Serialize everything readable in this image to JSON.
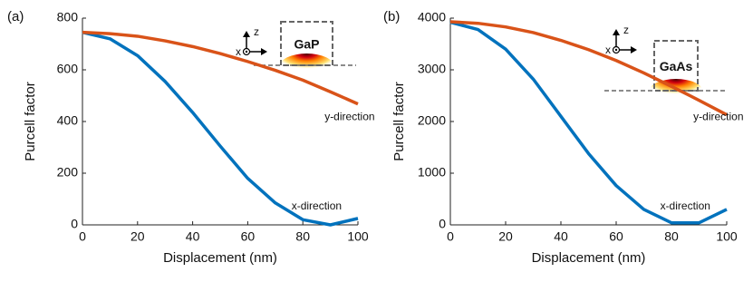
{
  "chart_data": [
    {
      "type": "line",
      "panel": "(a)",
      "xlabel": "Displacement (nm)",
      "ylabel": "Purcell factor",
      "x": [
        0,
        10,
        20,
        30,
        40,
        50,
        60,
        70,
        80,
        90,
        100
      ],
      "series": [
        {
          "name": "x-direction",
          "color": "#0072bd",
          "values": [
            745,
            720,
            655,
            555,
            435,
            305,
            180,
            85,
            20,
            0,
            25
          ]
        },
        {
          "name": "y-direction",
          "color": "#d95319",
          "values": [
            745,
            740,
            730,
            712,
            690,
            663,
            632,
            598,
            560,
            515,
            468
          ]
        }
      ],
      "xlim": [
        0,
        100
      ],
      "xticks": [
        0,
        20,
        40,
        60,
        80,
        100
      ],
      "ylim": [
        0,
        800
      ],
      "yticks": [
        0,
        200,
        400,
        600,
        800
      ],
      "inset": {
        "material": "GaP",
        "axis_z": "z",
        "axis_x": "x"
      }
    },
    {
      "type": "line",
      "panel": "(b)",
      "xlabel": "Displacement (nm)",
      "ylabel": "Purcell factor",
      "x": [
        0,
        10,
        20,
        30,
        40,
        50,
        60,
        70,
        80,
        90,
        100
      ],
      "series": [
        {
          "name": "x-direction",
          "color": "#0072bd",
          "values": [
            3920,
            3780,
            3400,
            2820,
            2100,
            1380,
            760,
            300,
            40,
            40,
            300
          ]
        },
        {
          "name": "y-direction",
          "color": "#d95319",
          "values": [
            3930,
            3900,
            3830,
            3720,
            3570,
            3390,
            3180,
            2940,
            2680,
            2410,
            2130
          ]
        }
      ],
      "xlim": [
        0,
        100
      ],
      "xticks": [
        0,
        20,
        40,
        60,
        80,
        100
      ],
      "ylim": [
        0,
        4000
      ],
      "yticks": [
        0,
        1000,
        2000,
        3000,
        4000
      ],
      "inset": {
        "material": "GaAs",
        "axis_z": "z",
        "axis_x": "x"
      }
    }
  ]
}
